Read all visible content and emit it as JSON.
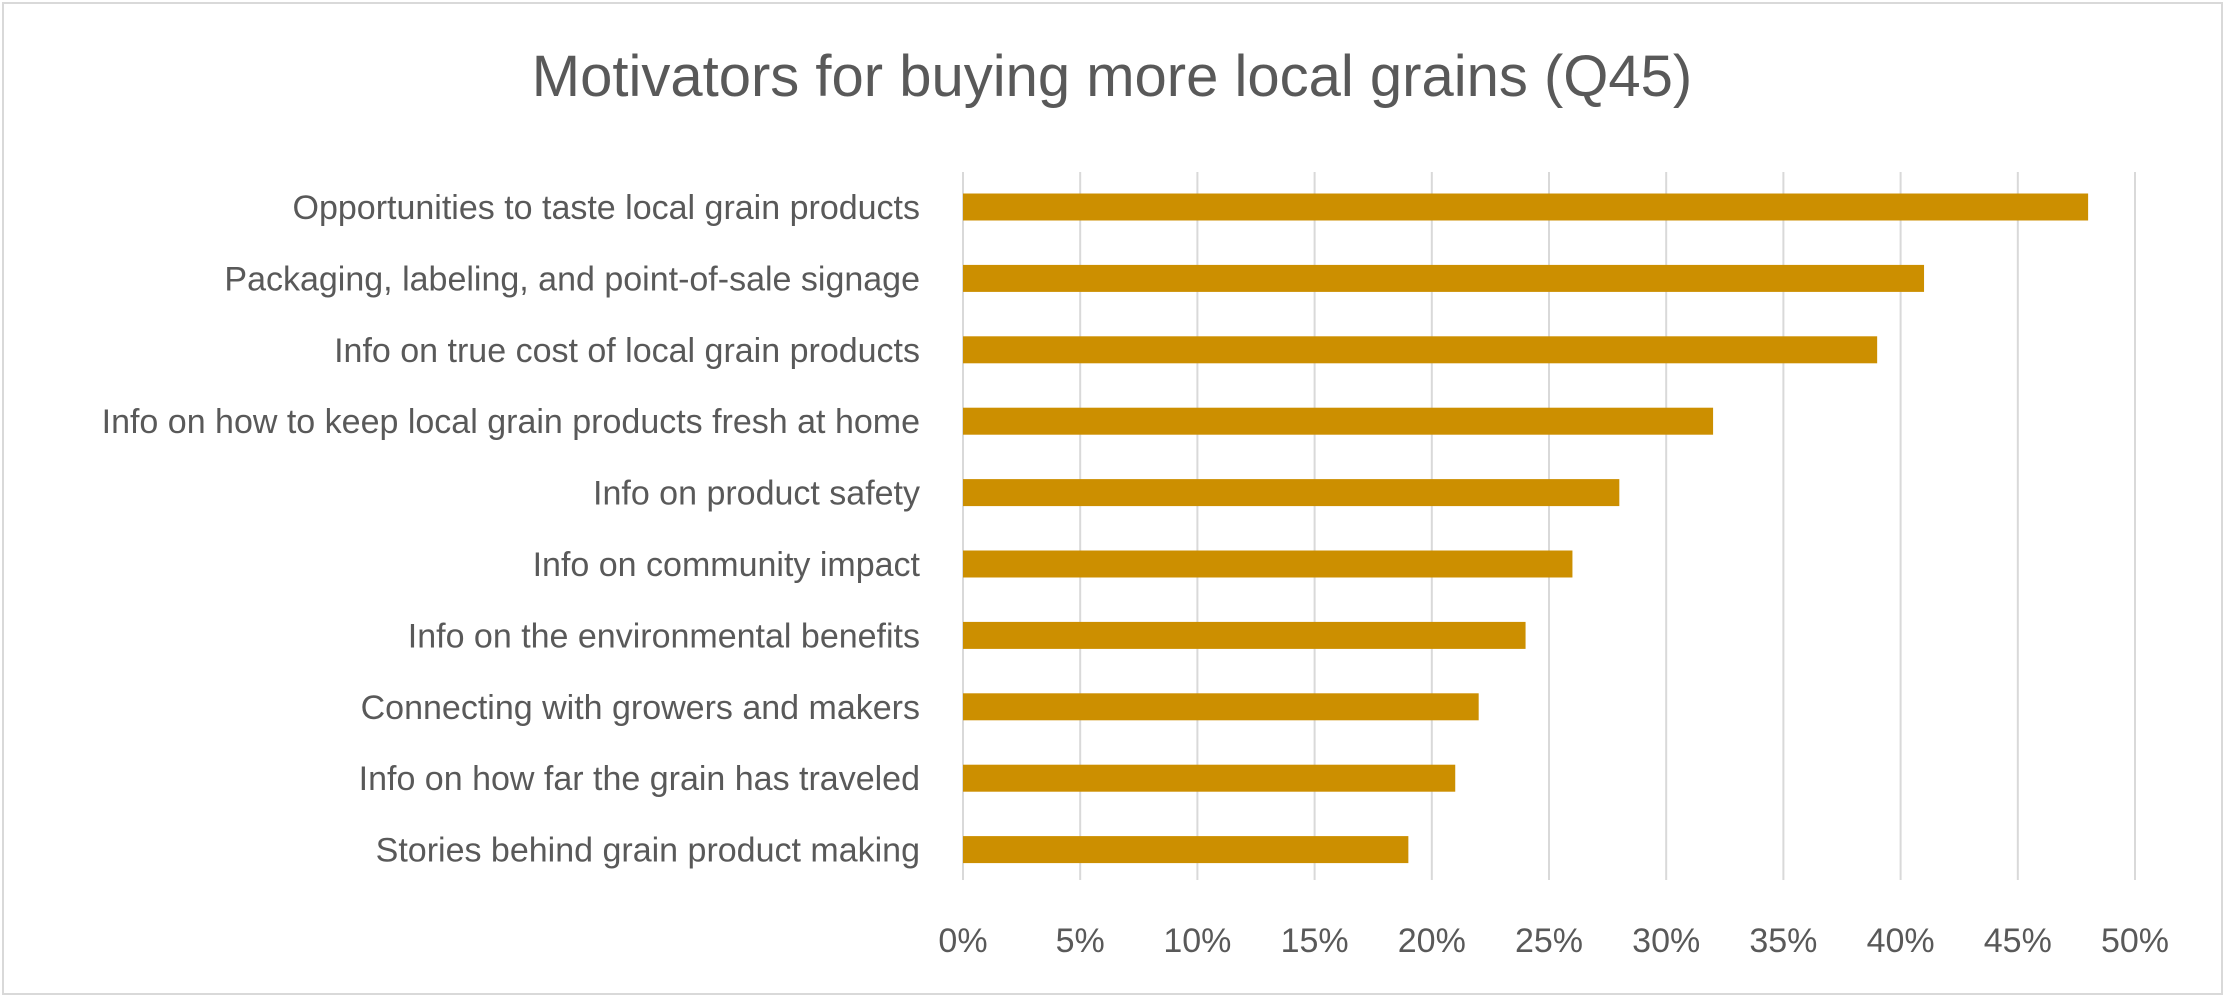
{
  "chart_data": {
    "type": "bar",
    "orientation": "horizontal",
    "title": "Motivators for buying more local grains (Q45)",
    "categories": [
      "Opportunities to taste local grain products",
      "Packaging, labeling, and point-of-sale signage",
      "Info on true cost of local grain products",
      "Info on how to keep local grain products fresh at home",
      "Info on product safety",
      "Info on community impact",
      "Info on the environmental benefits",
      "Connecting with growers and makers",
      "Info on how far the grain has traveled",
      "Stories behind grain product making"
    ],
    "values": [
      48,
      41,
      39,
      32,
      28,
      26,
      24,
      22,
      21,
      19
    ],
    "xlim": [
      0,
      50
    ],
    "xticks": [
      0,
      5,
      10,
      15,
      20,
      25,
      30,
      35,
      40,
      45,
      50
    ],
    "tick_suffix": "%",
    "bar_color": "#CC8F00",
    "grid": true,
    "legend": "none"
  }
}
